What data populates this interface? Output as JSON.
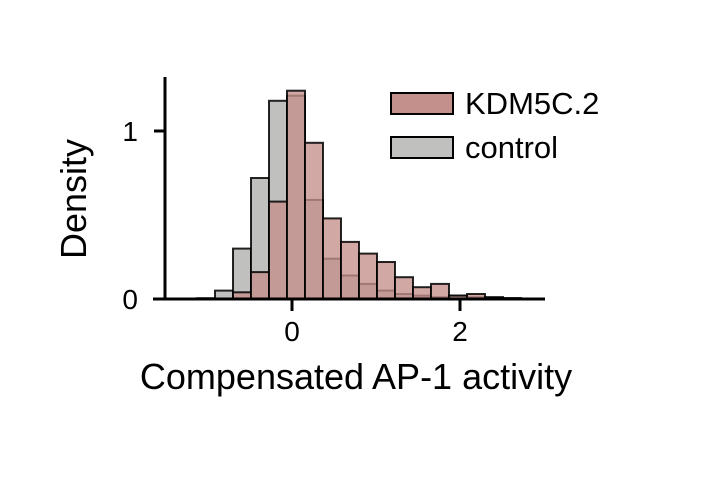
{
  "chart_data": {
    "type": "bar",
    "subtype": "histogram",
    "title": "",
    "xlabel": "Compensated AP-1 activity",
    "ylabel": "Density",
    "xlim": [
      -1.64,
      3.02
    ],
    "ylim": [
      0,
      1.32
    ],
    "xticks": [
      0,
      2
    ],
    "xtick_labels": [
      "0",
      "2"
    ],
    "yticks": [
      0,
      1
    ],
    "ytick_labels": [
      "0",
      "1"
    ],
    "grid": false,
    "legend_position": "top-right",
    "bin_start": -1.131,
    "bin_width": 0.2143,
    "series": [
      {
        "name": "control",
        "color": "#c0c0bf",
        "values": [
          0.005,
          0.05,
          0.3,
          0.72,
          1.18,
          1.21,
          0.59,
          0.24,
          0.14,
          0.09,
          0.05,
          0.03,
          0.02,
          0.01,
          0.02,
          0.01,
          0.01,
          0.005,
          0.0
        ]
      },
      {
        "name": "KDM5C.2",
        "color": "#c4908b",
        "values": [
          0.0,
          0.0,
          0.04,
          0.16,
          0.58,
          1.24,
          0.93,
          0.48,
          0.34,
          0.27,
          0.22,
          0.13,
          0.07,
          0.09,
          0.02,
          0.03,
          0.01,
          0.005,
          0.0
        ]
      }
    ],
    "overlap_color": "#b08282"
  }
}
